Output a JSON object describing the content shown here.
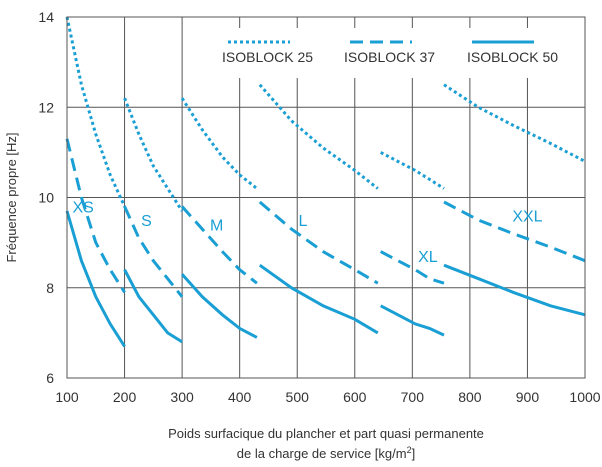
{
  "chart_data": {
    "type": "line",
    "ylabel": "Fréquence propre [Hz]",
    "xlabel_line1": "Poids surfacique du plancher et part quasi permanente",
    "xlabel_line2_prefix": "de la charge de service [kg/m",
    "xlabel_line2_sup": "2",
    "xlabel_line2_suffix": "]",
    "xlim": [
      100,
      1000
    ],
    "ylim": [
      6,
      14
    ],
    "x_ticks": [
      100,
      200,
      300,
      400,
      500,
      600,
      700,
      800,
      900,
      1000
    ],
    "y_ticks": [
      6,
      8,
      10,
      12,
      14
    ],
    "grid": true,
    "legend_position": "top-right",
    "line_color": "#1a9fd4",
    "series": [
      {
        "name": "ISOBLOCK 25",
        "style": "dotted",
        "segments": [
          {
            "size": "XS",
            "x": [
              100,
              125,
              150,
              175,
              200
            ],
            "y": [
              14.0,
              12.5,
              11.4,
              10.5,
              9.8
            ]
          },
          {
            "size": "S",
            "x": [
              200,
              225,
              250,
              275,
              300
            ],
            "y": [
              12.2,
              11.4,
              10.7,
              10.2,
              9.7
            ]
          },
          {
            "size": "M",
            "x": [
              300,
              335,
              370,
              400,
              430
            ],
            "y": [
              12.2,
              11.5,
              10.9,
              10.5,
              10.2
            ]
          },
          {
            "size": "L",
            "x": [
              435,
              490,
              545,
              600,
              640
            ],
            "y": [
              12.5,
              11.7,
              11.1,
              10.6,
              10.2
            ]
          },
          {
            "size": "XL",
            "x": [
              645,
              675,
              705,
              730,
              755
            ],
            "y": [
              11.0,
              10.8,
              10.6,
              10.4,
              10.2
            ]
          },
          {
            "size": "XXL",
            "x": [
              755,
              815,
              875,
              940,
              1000
            ],
            "y": [
              12.5,
              12.0,
              11.6,
              11.2,
              10.8
            ]
          }
        ]
      },
      {
        "name": "ISOBLOCK 37",
        "style": "dashed",
        "segments": [
          {
            "size": "XS",
            "x": [
              100,
              125,
              150,
              175,
              200
            ],
            "y": [
              11.3,
              10.0,
              9.0,
              8.4,
              7.9
            ]
          },
          {
            "size": "S",
            "x": [
              200,
              225,
              250,
              275,
              300
            ],
            "y": [
              9.8,
              9.1,
              8.6,
              8.2,
              7.8
            ]
          },
          {
            "size": "M",
            "x": [
              300,
              335,
              370,
              400,
              430
            ],
            "y": [
              9.8,
              9.3,
              8.8,
              8.4,
              8.1
            ]
          },
          {
            "size": "L",
            "x": [
              435,
              490,
              545,
              600,
              640
            ],
            "y": [
              9.9,
              9.3,
              8.8,
              8.4,
              8.1
            ]
          },
          {
            "size": "XL",
            "x": [
              645,
              675,
              705,
              730,
              755
            ],
            "y": [
              8.8,
              8.6,
              8.4,
              8.2,
              8.1
            ]
          },
          {
            "size": "XXL",
            "x": [
              755,
              815,
              875,
              940,
              1000
            ],
            "y": [
              9.9,
              9.5,
              9.2,
              8.9,
              8.6
            ]
          }
        ]
      },
      {
        "name": "ISOBLOCK 50",
        "style": "solid",
        "segments": [
          {
            "size": "XS",
            "x": [
              100,
              125,
              150,
              175,
              200
            ],
            "y": [
              9.7,
              8.6,
              7.8,
              7.2,
              6.7
            ]
          },
          {
            "size": "S",
            "x": [
              200,
              225,
              250,
              275,
              300
            ],
            "y": [
              8.4,
              7.8,
              7.4,
              7.0,
              6.8
            ]
          },
          {
            "size": "M",
            "x": [
              300,
              335,
              370,
              400,
              430
            ],
            "y": [
              8.3,
              7.8,
              7.4,
              7.1,
              6.9
            ]
          },
          {
            "size": "L",
            "x": [
              435,
              490,
              545,
              600,
              640
            ],
            "y": [
              8.5,
              8.0,
              7.6,
              7.3,
              7.0
            ]
          },
          {
            "size": "XL",
            "x": [
              645,
              675,
              705,
              730,
              755
            ],
            "y": [
              7.6,
              7.4,
              7.2,
              7.1,
              6.95
            ]
          },
          {
            "size": "XXL",
            "x": [
              755,
              815,
              875,
              940,
              1000
            ],
            "y": [
              8.5,
              8.2,
              7.9,
              7.6,
              7.4
            ]
          }
        ]
      }
    ],
    "size_labels": [
      {
        "text": "XS",
        "x": 128,
        "y": 9.8
      },
      {
        "text": "S",
        "x": 238,
        "y": 9.5
      },
      {
        "text": "M",
        "x": 360,
        "y": 9.4
      },
      {
        "text": "L",
        "x": 510,
        "y": 9.5
      },
      {
        "text": "XL",
        "x": 727,
        "y": 8.7
      },
      {
        "text": "XXL",
        "x": 900,
        "y": 9.6
      }
    ]
  }
}
